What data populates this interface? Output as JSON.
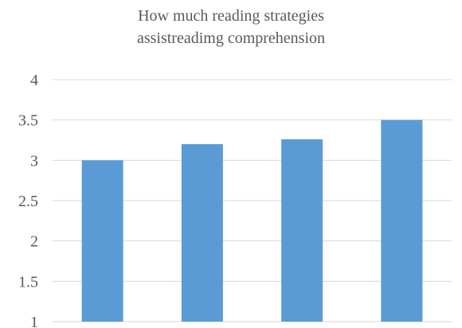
{
  "chart_data": {
    "type": "bar",
    "title_lines": [
      "How much reading strategies",
      "assistreadimg comprehension"
    ],
    "categories": [
      "",
      "",
      "",
      ""
    ],
    "values": [
      3.0,
      3.2,
      3.26,
      3.5
    ],
    "xlabel": "",
    "ylabel": "",
    "ylim": [
      1,
      4
    ],
    "yticks": [
      "1",
      "1.5",
      "2",
      "2.5",
      "3",
      "3.5",
      "4"
    ],
    "grid": true,
    "bar_color": "#5b9bd5",
    "grid_color": "#d9d9d9",
    "text_color": "#595959"
  }
}
